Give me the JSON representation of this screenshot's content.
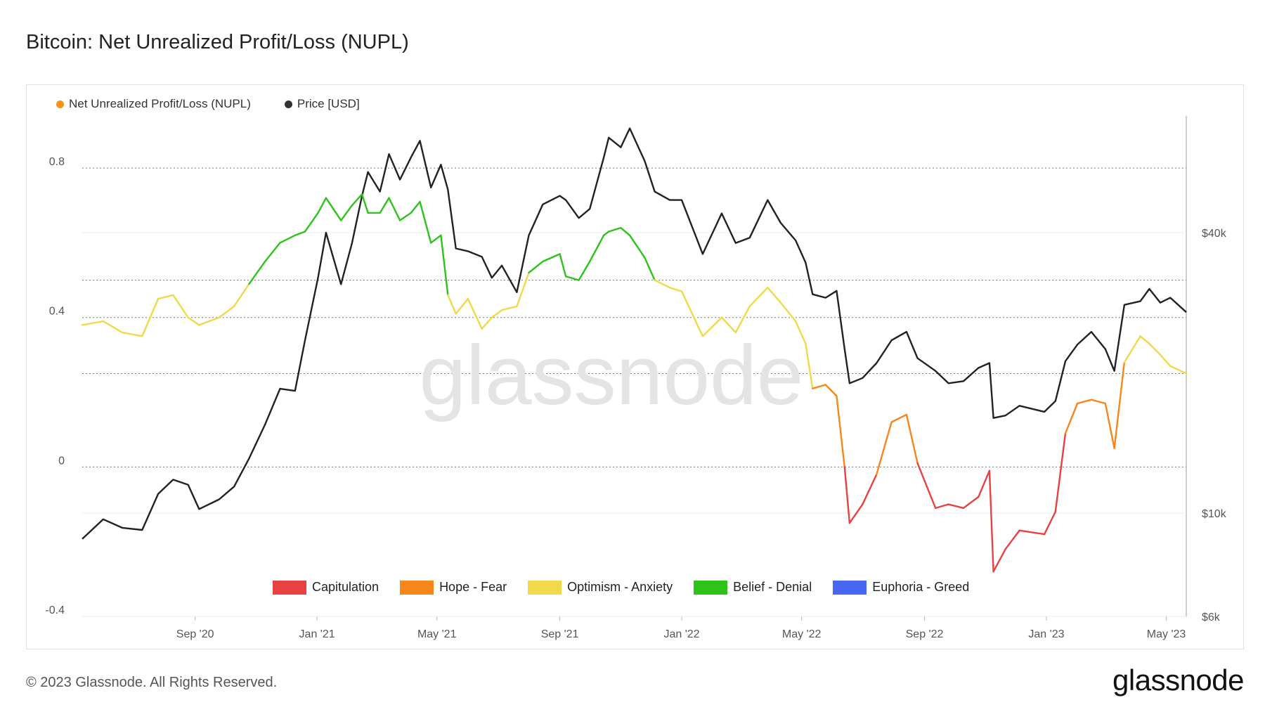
{
  "title": "Bitcoin: Net Unrealized Profit/Loss (NUPL)",
  "footer": "© 2023 Glassnode. All Rights Reserved.",
  "brand": "glassnode",
  "watermark": "glassnode",
  "legend": [
    {
      "label": "Net Unrealized Profit/Loss (NUPL)",
      "color": "#f7931a"
    },
    {
      "label": "Price [USD]",
      "color": "#333333"
    }
  ],
  "zones": [
    {
      "label": "Capitulation",
      "color": "#e84142",
      "from": -1.0,
      "to": 0.0
    },
    {
      "label": "Hope - Fear",
      "color": "#f7861b",
      "from": 0.0,
      "to": 0.25
    },
    {
      "label": "Optimism - Anxiety",
      "color": "#f0d94a",
      "from": 0.25,
      "to": 0.5
    },
    {
      "label": "Belief - Denial",
      "color": "#2dc31b",
      "from": 0.5,
      "to": 0.75
    },
    {
      "label": "Euphoria - Greed",
      "color": "#4867f0",
      "from": 0.75,
      "to": 1.0
    }
  ],
  "chart_data": {
    "type": "line",
    "x_ticks": [
      "Sep '20",
      "Jan '21",
      "May '21",
      "Sep '21",
      "Jan '22",
      "May '22",
      "Sep '22",
      "Jan '23",
      "May '23"
    ],
    "x_tick_dates": [
      "2020-09-01",
      "2021-01-01",
      "2021-05-01",
      "2021-09-01",
      "2022-01-01",
      "2022-05-01",
      "2022-09-01",
      "2023-01-01",
      "2023-05-01"
    ],
    "x_range": [
      "2020-05-11",
      "2023-05-21"
    ],
    "y_left_ticks": [
      "-0.4",
      "0",
      "0.4",
      "0.8"
    ],
    "y_left_values": [
      -0.4,
      0,
      0.4,
      0.8
    ],
    "y_left_range": [
      -0.4,
      0.93
    ],
    "y_right_ticks": [
      "$6k",
      "$10k",
      "$40k"
    ],
    "y_right_values": [
      6000,
      10000,
      40000
    ],
    "y_right_scale": "log",
    "y_right_range": [
      6000,
      70000
    ],
    "grid": "horizontal dotted",
    "series": [
      {
        "name": "Net Unrealized Profit/Loss (NUPL)",
        "axis": "left",
        "colored_by_zone": true,
        "x": [
          "2020-05-11",
          "2020-06-01",
          "2020-06-20",
          "2020-07-10",
          "2020-07-26",
          "2020-08-10",
          "2020-08-25",
          "2020-09-05",
          "2020-09-25",
          "2020-10-10",
          "2020-10-25",
          "2020-11-10",
          "2020-11-25",
          "2020-12-10",
          "2020-12-20",
          "2021-01-02",
          "2021-01-10",
          "2021-01-25",
          "2021-02-05",
          "2021-02-15",
          "2021-02-21",
          "2021-03-05",
          "2021-03-14",
          "2021-03-25",
          "2021-04-05",
          "2021-04-14",
          "2021-04-25",
          "2021-05-05",
          "2021-05-12",
          "2021-05-20",
          "2021-06-01",
          "2021-06-15",
          "2021-06-25",
          "2021-07-05",
          "2021-07-20",
          "2021-08-01",
          "2021-08-15",
          "2021-09-01",
          "2021-09-07",
          "2021-09-20",
          "2021-10-01",
          "2021-10-15",
          "2021-10-20",
          "2021-11-01",
          "2021-11-10",
          "2021-11-25",
          "2021-12-05",
          "2021-12-20",
          "2022-01-01",
          "2022-01-22",
          "2022-02-10",
          "2022-02-24",
          "2022-03-10",
          "2022-03-28",
          "2022-04-10",
          "2022-04-25",
          "2022-05-05",
          "2022-05-12",
          "2022-05-25",
          "2022-06-05",
          "2022-06-13",
          "2022-06-18",
          "2022-07-01",
          "2022-07-15",
          "2022-07-30",
          "2022-08-14",
          "2022-08-25",
          "2022-09-12",
          "2022-09-25",
          "2022-10-10",
          "2022-10-25",
          "2022-11-05",
          "2022-11-09",
          "2022-11-21",
          "2022-12-05",
          "2022-12-30",
          "2023-01-10",
          "2023-01-20",
          "2023-02-01",
          "2023-02-15",
          "2023-03-01",
          "2023-03-10",
          "2023-03-20",
          "2023-04-05",
          "2023-04-14",
          "2023-04-25",
          "2023-05-05",
          "2023-05-21"
        ],
        "values": [
          0.38,
          0.39,
          0.36,
          0.35,
          0.45,
          0.46,
          0.4,
          0.38,
          0.4,
          0.43,
          0.49,
          0.55,
          0.6,
          0.62,
          0.63,
          0.68,
          0.72,
          0.66,
          0.7,
          0.73,
          0.68,
          0.68,
          0.72,
          0.66,
          0.68,
          0.71,
          0.6,
          0.62,
          0.46,
          0.41,
          0.45,
          0.37,
          0.4,
          0.42,
          0.43,
          0.52,
          0.55,
          0.57,
          0.51,
          0.5,
          0.55,
          0.62,
          0.63,
          0.64,
          0.62,
          0.56,
          0.5,
          0.48,
          0.47,
          0.35,
          0.4,
          0.36,
          0.43,
          0.48,
          0.44,
          0.39,
          0.33,
          0.21,
          0.22,
          0.19,
          0.0,
          -0.15,
          -0.1,
          -0.02,
          0.12,
          0.14,
          0.01,
          -0.11,
          -0.1,
          -0.11,
          -0.08,
          -0.01,
          -0.28,
          -0.22,
          -0.17,
          -0.18,
          -0.12,
          0.09,
          0.17,
          0.18,
          0.17,
          0.05,
          0.28,
          0.35,
          0.33,
          0.3,
          0.27,
          0.25
        ]
      },
      {
        "name": "Price [USD]",
        "axis": "right",
        "color": "#222222",
        "x": [
          "2020-05-11",
          "2020-06-01",
          "2020-06-20",
          "2020-07-10",
          "2020-07-26",
          "2020-08-10",
          "2020-08-25",
          "2020-09-05",
          "2020-09-25",
          "2020-10-10",
          "2020-10-25",
          "2020-11-10",
          "2020-11-25",
          "2020-12-10",
          "2020-12-20",
          "2021-01-02",
          "2021-01-10",
          "2021-01-25",
          "2021-02-05",
          "2021-02-15",
          "2021-02-21",
          "2021-03-05",
          "2021-03-14",
          "2021-03-25",
          "2021-04-05",
          "2021-04-14",
          "2021-04-25",
          "2021-05-05",
          "2021-05-12",
          "2021-05-20",
          "2021-06-01",
          "2021-06-15",
          "2021-06-25",
          "2021-07-05",
          "2021-07-20",
          "2021-08-01",
          "2021-08-15",
          "2021-09-01",
          "2021-09-07",
          "2021-09-20",
          "2021-10-01",
          "2021-10-15",
          "2021-10-20",
          "2021-11-01",
          "2021-11-10",
          "2021-11-25",
          "2021-12-05",
          "2021-12-20",
          "2022-01-01",
          "2022-01-22",
          "2022-02-10",
          "2022-02-24",
          "2022-03-10",
          "2022-03-28",
          "2022-04-10",
          "2022-04-25",
          "2022-05-05",
          "2022-05-12",
          "2022-05-25",
          "2022-06-05",
          "2022-06-13",
          "2022-06-18",
          "2022-07-01",
          "2022-07-15",
          "2022-07-30",
          "2022-08-14",
          "2022-08-25",
          "2022-09-12",
          "2022-09-25",
          "2022-10-10",
          "2022-10-25",
          "2022-11-05",
          "2022-11-09",
          "2022-11-21",
          "2022-12-05",
          "2022-12-30",
          "2023-01-10",
          "2023-01-20",
          "2023-02-01",
          "2023-02-15",
          "2023-03-01",
          "2023-03-10",
          "2023-03-20",
          "2023-04-05",
          "2023-04-14",
          "2023-04-25",
          "2023-05-05",
          "2023-05-21"
        ],
        "values": [
          8800,
          9700,
          9300,
          9200,
          11000,
          11800,
          11500,
          10200,
          10700,
          11400,
          13100,
          15500,
          18500,
          18300,
          23500,
          32000,
          40000,
          31000,
          38000,
          48000,
          54000,
          49000,
          59000,
          52000,
          58000,
          63000,
          50000,
          56000,
          49500,
          37000,
          36500,
          35500,
          32000,
          34000,
          29800,
          39500,
          46000,
          48000,
          47000,
          43000,
          45000,
          58000,
          64000,
          61000,
          67000,
          57000,
          49000,
          47000,
          47000,
          36000,
          44000,
          38000,
          39000,
          47000,
          42000,
          38500,
          34500,
          29500,
          29000,
          30000,
          22500,
          19000,
          19500,
          21000,
          23500,
          24500,
          21500,
          20200,
          19000,
          19200,
          20500,
          21000,
          16000,
          16200,
          17000,
          16500,
          17400,
          21200,
          23000,
          24500,
          22500,
          20200,
          28000,
          28500,
          30300,
          28300,
          29000,
          27000
        ]
      }
    ]
  }
}
